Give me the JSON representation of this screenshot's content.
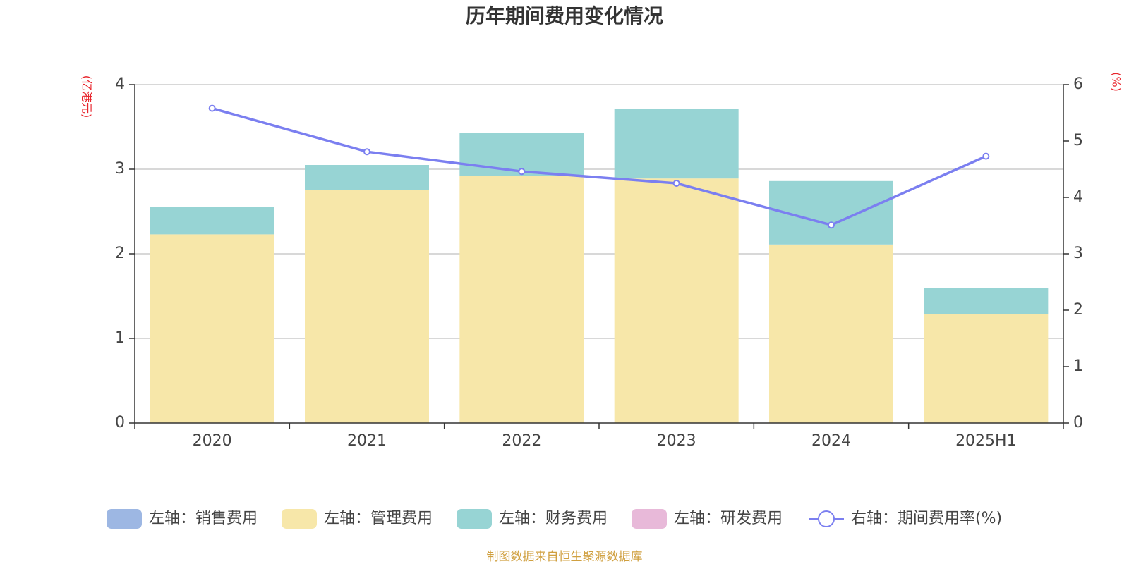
{
  "chart_data": {
    "type": "bar",
    "title": "历年期间费用变化情况",
    "left_unit": "(亿港元)",
    "right_unit": "(%)",
    "categories": [
      "2020",
      "2021",
      "2022",
      "2023",
      "2024",
      "2025H1"
    ],
    "left_ylim": [
      0,
      4
    ],
    "left_ticks": [
      "0",
      "1",
      "2",
      "3",
      "4"
    ],
    "right_ylim": [
      0,
      6
    ],
    "right_ticks": [
      "0",
      "1",
      "2",
      "3",
      "4",
      "5",
      "6"
    ],
    "stacked": true,
    "grid": true,
    "legend_position": "bottom",
    "series": [
      {
        "name": "左轴：销售费用",
        "type": "bar",
        "axis": "left",
        "color": "#9db7e3",
        "values": [
          0,
          0,
          0,
          0,
          0,
          0
        ]
      },
      {
        "name": "左轴：管理费用",
        "type": "bar",
        "axis": "left",
        "color": "#f7e7a9",
        "values": [
          2.23,
          2.75,
          2.92,
          2.89,
          2.11,
          1.29
        ]
      },
      {
        "name": "左轴：财务费用",
        "type": "bar",
        "axis": "left",
        "color": "#97d4d4",
        "values": [
          0.32,
          0.3,
          0.51,
          0.82,
          0.75,
          0.31
        ]
      },
      {
        "name": "左轴：研发费用",
        "type": "bar",
        "axis": "left",
        "color": "#e8b9d9",
        "values": [
          0,
          0,
          0,
          0,
          0,
          0
        ]
      },
      {
        "name": "右轴：期间费用率(%)",
        "type": "line",
        "axis": "right",
        "color": "#7b7ff0",
        "values": [
          5.58,
          4.81,
          4.46,
          4.25,
          3.51,
          4.73
        ]
      }
    ]
  },
  "source_note": "制图数据来自恒生聚源数据库"
}
